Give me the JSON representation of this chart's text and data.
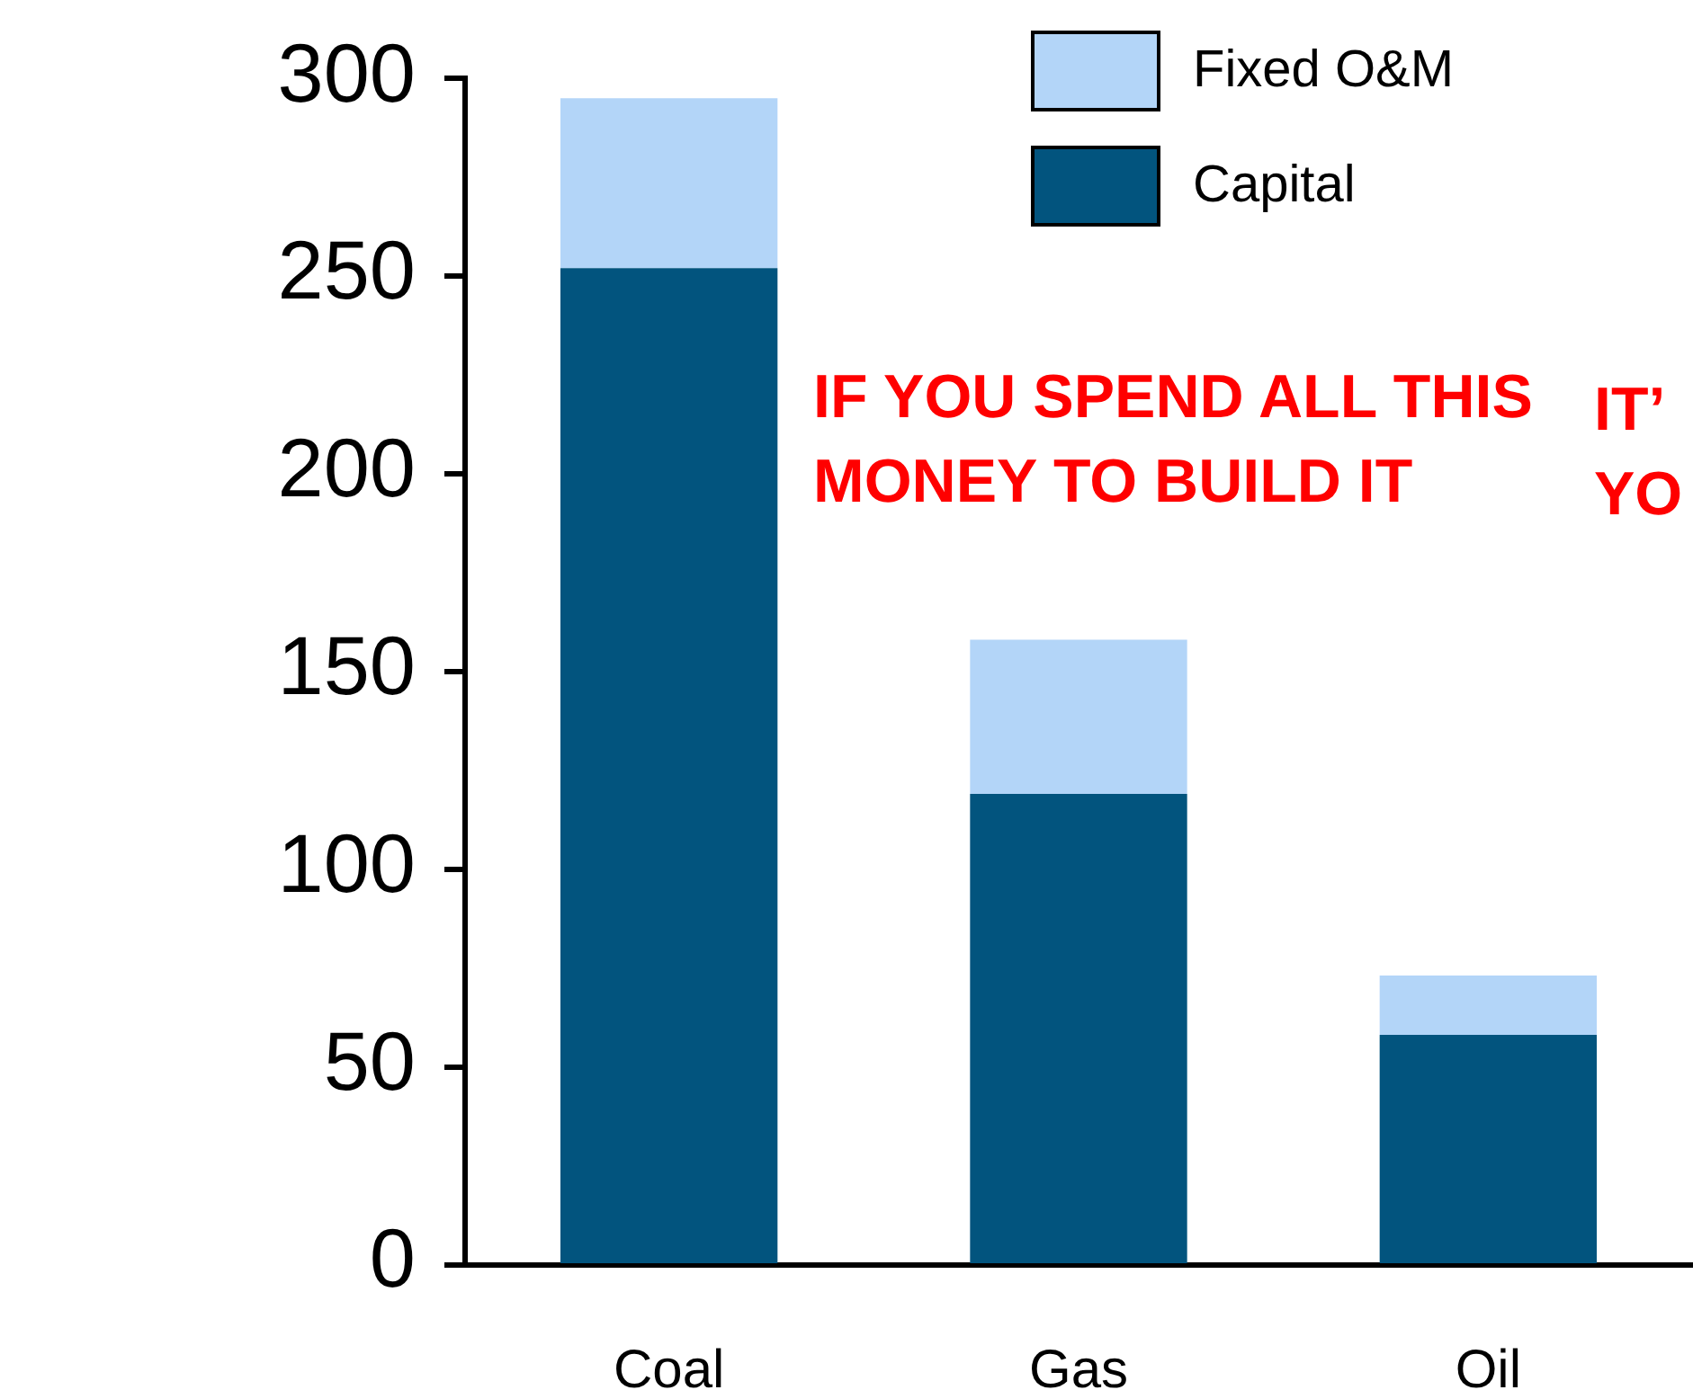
{
  "chart_data": {
    "type": "bar",
    "stacked": true,
    "categories": [
      "Coal",
      "Gas",
      "Oil"
    ],
    "series": [
      {
        "name": "Capital",
        "color": "#02547e",
        "values": [
          252,
          119,
          58
        ]
      },
      {
        "name": "Fixed O&M",
        "color": "#b3d5f8",
        "values": [
          43,
          39,
          15
        ]
      }
    ],
    "ylim": [
      0,
      300
    ],
    "yticks": [
      0,
      50,
      100,
      150,
      200,
      250,
      300
    ],
    "legend": "top",
    "grid": false,
    "annotations": [
      "IF YOU SPEND ALL THIS\nMONEY TO BUILD IT",
      "IT’\nYO"
    ]
  }
}
